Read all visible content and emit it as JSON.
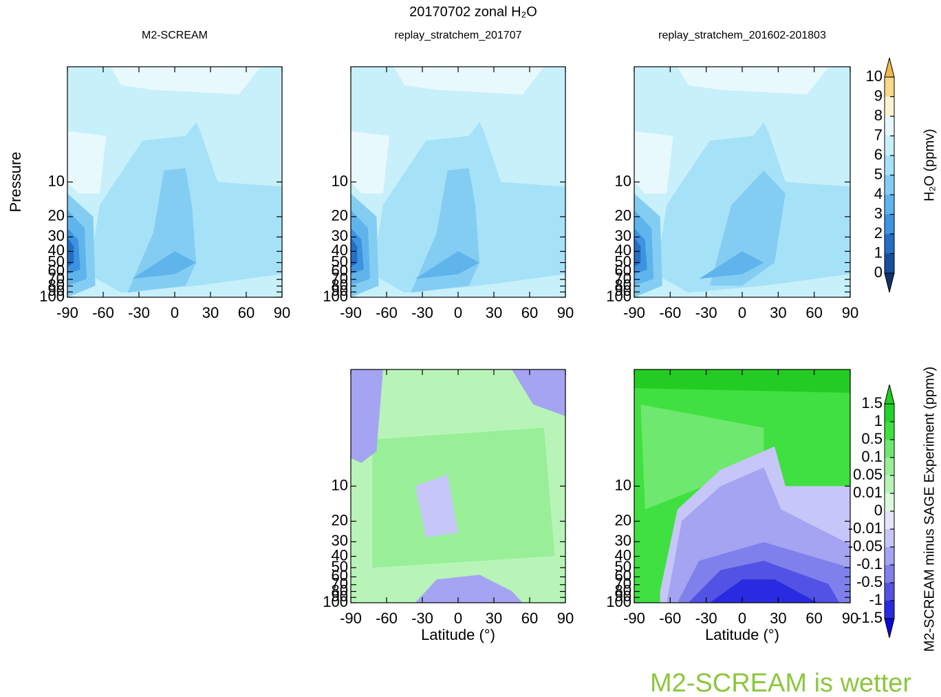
{
  "title": "20170702 zonal H₂O",
  "annotation": "M2-SCREAM is wetter",
  "chart_data": [
    {
      "type": "contour",
      "title": "M2-SCREAM",
      "ylabel": "Pressure",
      "yscale": "log",
      "xlim": [
        -90,
        90
      ],
      "xticks": [
        -90,
        -60,
        -30,
        0,
        30,
        60,
        90
      ],
      "ylim": [
        100,
        1
      ],
      "yticks": [
        10,
        20,
        30,
        40,
        50,
        60,
        70,
        80,
        90,
        100
      ]
    },
    {
      "type": "contour",
      "title": "replay_stratchem_201707",
      "yscale": "log",
      "xlim": [
        -90,
        90
      ],
      "xticks": [
        -90,
        -60,
        -30,
        0,
        30,
        60,
        90
      ],
      "ylim": [
        100,
        1
      ],
      "yticks": [
        10,
        20,
        30,
        40,
        50,
        60,
        70,
        80,
        90,
        100
      ]
    },
    {
      "type": "contour",
      "title": "replay_stratchem_201602-201803",
      "yscale": "log",
      "xlim": [
        -90,
        90
      ],
      "xticks": [
        -90,
        -60,
        -30,
        0,
        30,
        60,
        90
      ],
      "ylim": [
        100,
        1
      ],
      "yticks": [
        10,
        20,
        30,
        40,
        50,
        60,
        70,
        80,
        90,
        100
      ]
    },
    {
      "type": "contour",
      "xlabel": "Latitude (°)",
      "yscale": "log",
      "xlim": [
        -90,
        90
      ],
      "xticks": [
        -90,
        -60,
        -30,
        0,
        30,
        60,
        90
      ],
      "ylim": [
        100,
        1
      ],
      "yticks": [
        10,
        20,
        30,
        40,
        50,
        60,
        70,
        80,
        90,
        100
      ]
    },
    {
      "type": "contour",
      "xlabel": "Latitude (°)",
      "yscale": "log",
      "xlim": [
        -90,
        90
      ],
      "xticks": [
        -90,
        -60,
        -30,
        0,
        30,
        60,
        90
      ],
      "ylim": [
        100,
        1
      ],
      "yticks": [
        10,
        20,
        30,
        40,
        50,
        60,
        70,
        80,
        90,
        100
      ]
    }
  ],
  "colorbars": [
    {
      "label": "H₂O (ppmv)",
      "ticks": [
        10,
        9,
        8,
        7,
        6,
        5,
        4,
        3,
        2,
        1,
        0
      ],
      "colors": [
        "#f2b84a",
        "#f7d98a",
        "#fdf3d2",
        "#e8f9fd",
        "#c8f0fa",
        "#a6e2f7",
        "#84cdf2",
        "#5fb4ec",
        "#3c94e0",
        "#236fc6",
        "#174f9e",
        "#12336f"
      ]
    },
    {
      "label": "M2-SCREAM minus SAGE Experiment (ppmv)",
      "ticks": [
        1.5,
        1,
        0.5,
        0.1,
        0.05,
        0.01,
        0,
        -0.01,
        -0.05,
        -0.1,
        -0.5,
        -1,
        -1.5
      ],
      "colors": [
        "#22cc22",
        "#22d42a",
        "#3fe03f",
        "#6fe86f",
        "#98ef98",
        "#b8f4b8",
        "#dcfadc",
        "#e4e4fc",
        "#c6c6f8",
        "#a4a4f2",
        "#8080ec",
        "#5252e4",
        "#2a2ae0",
        "#0a0ad8"
      ]
    }
  ]
}
